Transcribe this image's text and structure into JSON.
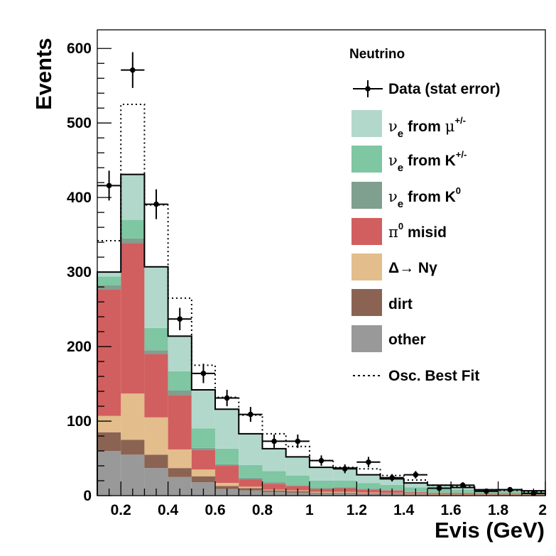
{
  "chart_data": {
    "type": "histogram-stacked",
    "xlabel": "Evis (GeV)",
    "ylabel": "Events",
    "xlim": [
      0.1,
      2.0
    ],
    "ylim": [
      0,
      625
    ],
    "xticks": [
      "0.2",
      "0.4",
      "0.6",
      "0.8",
      "1",
      "1.2",
      "1.4",
      "1.6",
      "1.8",
      "2"
    ],
    "yticks": [
      "0",
      "100",
      "200",
      "300",
      "400",
      "500",
      "600"
    ],
    "bin_edges": [
      0.1,
      0.2,
      0.3,
      0.4,
      0.5,
      0.6,
      0.7,
      0.8,
      0.9,
      1.0,
      1.1,
      1.2,
      1.3,
      1.4,
      1.5,
      1.6,
      1.7,
      1.8,
      1.9,
      2.0
    ],
    "legend": {
      "title": "Neutrino",
      "position": "top-right",
      "entries": {
        "data": "Data (stat error)",
        "nue_mu_pre": "ν",
        "nue_mu_sub": "e",
        "nue_mu_mid": "from",
        "nue_mu_particle": "μ",
        "nue_mu_sup": "+/-",
        "nue_k_pre": "ν",
        "nue_k_sub": "e",
        "nue_k_mid": "from K",
        "nue_k_sup": "+/-",
        "nue_k0_pre": "ν",
        "nue_k0_sub": "e",
        "nue_k0_mid": "from K",
        "nue_k0_sup": "0",
        "pi0_pre": "π",
        "pi0_sup": "0",
        "pi0_post": "misid",
        "delta": "Δ→ Nγ",
        "dirt": "dirt",
        "other": "other",
        "osc": "Osc. Best Fit"
      }
    },
    "colors": {
      "other": "#999999",
      "dirt": "#8b6352",
      "delta": "#e3bd8b",
      "pi0": "#d15f5f",
      "nue_k0": "#7f9f8f",
      "nue_k": "#7fc6a3",
      "nue_mu": "#b2d8cc"
    },
    "stack_order": [
      "other",
      "dirt",
      "delta",
      "pi0",
      "nue_k0",
      "nue_k",
      "nue_mu"
    ],
    "series": [
      {
        "key": "other",
        "values": [
          60,
          55,
          37,
          25,
          18,
          9,
          7,
          5,
          4,
          3,
          3,
          2,
          2,
          1.5,
          1,
          1,
          1,
          1,
          1
        ]
      },
      {
        "key": "dirt",
        "values": [
          25,
          20,
          18,
          12,
          8,
          4,
          3,
          2,
          2,
          1,
          1,
          1,
          1,
          0.5,
          0.5,
          0.5,
          0.5,
          0.5,
          0.5
        ]
      },
      {
        "key": "delta",
        "values": [
          22,
          62,
          50,
          25,
          9,
          4,
          2,
          1,
          1,
          1,
          1,
          1,
          0.5,
          0.5,
          0.5,
          0.5,
          0.5,
          0.5,
          0.5
        ]
      },
      {
        "key": "pi0",
        "values": [
          170,
          202,
          85,
          73,
          26,
          23,
          10,
          8,
          6,
          4,
          5,
          4,
          3.5,
          2,
          1.5,
          1.5,
          1,
          1,
          1
        ]
      },
      {
        "key": "nue_k0",
        "values": [
          5,
          6,
          5,
          6,
          3,
          2,
          2,
          2,
          1,
          1,
          1,
          1,
          0.5,
          0.5,
          0.5,
          0.5,
          0.5,
          0.5,
          0.5
        ]
      },
      {
        "key": "nue_k",
        "values": [
          12,
          25,
          30,
          26,
          26,
          21,
          17,
          15,
          13,
          10,
          9,
          8,
          7,
          6,
          5,
          4,
          3,
          3,
          2
        ]
      },
      {
        "key": "nue_mu",
        "values": [
          6,
          61,
          82,
          47,
          52,
          53,
          42,
          30,
          25,
          18,
          17,
          11,
          8,
          6,
          5,
          3,
          1.5,
          1.5,
          1
        ]
      }
    ],
    "osc_best_fit": [
      342,
      525,
      390,
      265,
      175,
      132,
      108,
      83,
      66,
      47,
      38,
      36,
      27,
      21,
      14,
      12,
      8,
      7,
      5
    ],
    "data": {
      "x": [
        0.15,
        0.25,
        0.35,
        0.45,
        0.55,
        0.65,
        0.75,
        0.85,
        0.95,
        1.05,
        1.15,
        1.25,
        1.35,
        1.45,
        1.55,
        1.65,
        1.75,
        1.85,
        1.95
      ],
      "y": [
        416,
        571,
        391,
        237,
        164,
        131,
        109,
        73,
        73,
        47,
        36,
        45,
        24,
        28,
        10,
        14,
        6,
        8,
        3
      ],
      "yerr": [
        20,
        24,
        20,
        15,
        13,
        11,
        10,
        9,
        9,
        7,
        6,
        7,
        5,
        5,
        3,
        4,
        3,
        3,
        2
      ]
    }
  }
}
